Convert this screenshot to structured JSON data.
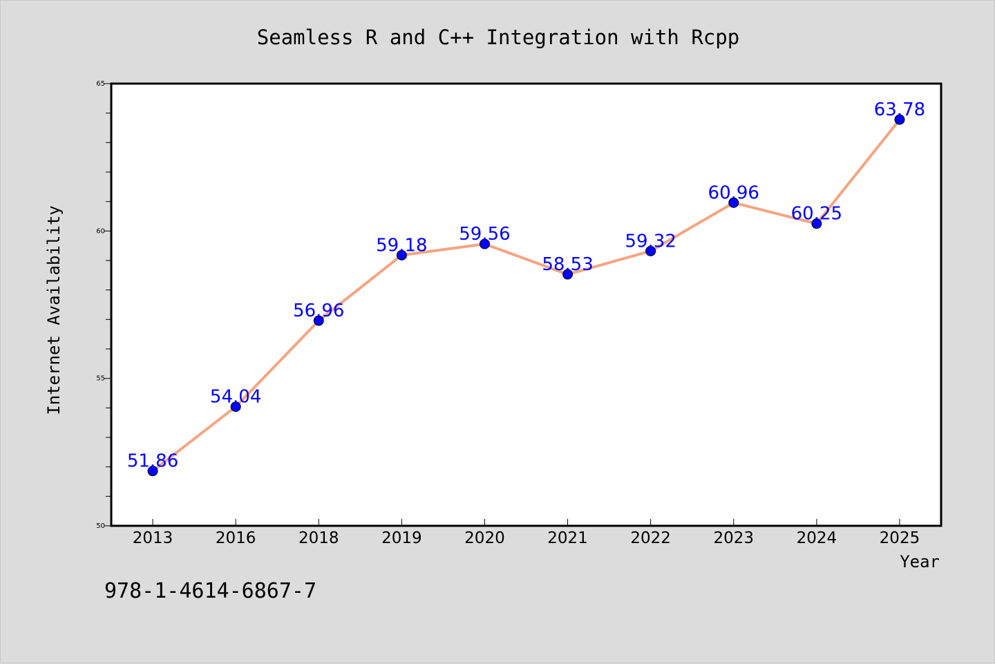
{
  "chart_data": {
    "type": "line",
    "title": "Seamless R and C++ Integration with Rcpp",
    "xlabel": "Year",
    "ylabel": "Internet Availability",
    "categories": [
      "2013",
      "2016",
      "2018",
      "2019",
      "2020",
      "2021",
      "2022",
      "2023",
      "2024",
      "2025"
    ],
    "series": [
      {
        "values": [
          51.86,
          54.04,
          56.96,
          59.18,
          59.56,
          58.53,
          59.32,
          60.96,
          60.25,
          63.78
        ]
      }
    ],
    "data_labels": [
      "51.86",
      "54.04",
      "56.96",
      "59.18",
      "59.56",
      "58.53",
      "59.32",
      "60.96",
      "60.25",
      "63.78"
    ],
    "ylim": [
      50,
      65
    ],
    "y_major_ticks": [
      50,
      55,
      60,
      65
    ],
    "y_minor_tick_step": 1,
    "grid": false,
    "legend": "none",
    "line_color": "#f4a582",
    "marker_color": "#0000ff",
    "label_color": "#0000ff",
    "background": "#dcdcdc",
    "plot_background": "#ffffff"
  },
  "annotation": {
    "text": "978-1-4614-6867-7"
  }
}
